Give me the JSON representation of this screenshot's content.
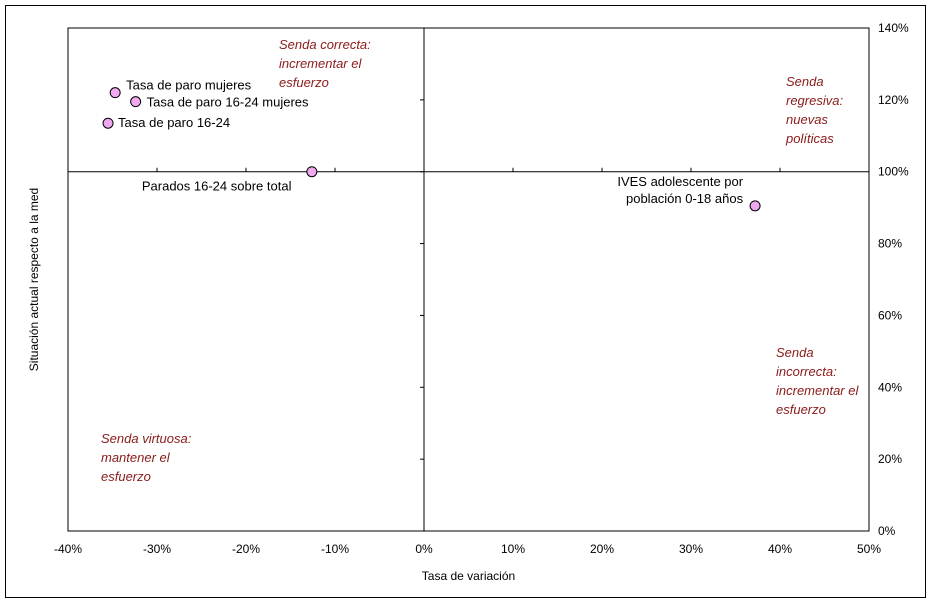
{
  "chart_data": {
    "type": "scatter",
    "xlabel": "Tasa de variación",
    "ylabel": "Situación actual respecto a la med",
    "xlim": [
      -0.4,
      0.5
    ],
    "ylim": [
      0,
      1.4
    ],
    "x_ticks": [
      {
        "value": -0.4,
        "label": "-40%"
      },
      {
        "value": -0.3,
        "label": "-30%"
      },
      {
        "value": -0.2,
        "label": "-20%"
      },
      {
        "value": -0.1,
        "label": "-10%"
      },
      {
        "value": 0.0,
        "label": "0%"
      },
      {
        "value": 0.1,
        "label": "10%"
      },
      {
        "value": 0.2,
        "label": "20%"
      },
      {
        "value": 0.3,
        "label": "30%"
      },
      {
        "value": 0.4,
        "label": "40%"
      },
      {
        "value": 0.5,
        "label": "50%"
      }
    ],
    "y_ticks": [
      {
        "value": 0.0,
        "label": "0%"
      },
      {
        "value": 0.2,
        "label": "20%"
      },
      {
        "value": 0.4,
        "label": "40%"
      },
      {
        "value": 0.6,
        "label": "60%"
      },
      {
        "value": 0.8,
        "label": "80%"
      },
      {
        "value": 1.0,
        "label": "100%"
      },
      {
        "value": 1.2,
        "label": "120%"
      },
      {
        "value": 1.4,
        "label": "140%"
      }
    ],
    "y_axis_side": "right",
    "grid": false,
    "marker_color": "#F0A8F0",
    "marker_edge": "#000000",
    "points": [
      {
        "label": "Tasa de paro mujeres",
        "x": -0.347,
        "y": 1.22
      },
      {
        "label": "Tasa de paro 16-24 mujeres",
        "x": -0.324,
        "y": 1.195
      },
      {
        "label": "Tasa de paro 16-24",
        "x": -0.355,
        "y": 1.135
      },
      {
        "label": "Parados 16-24 sobre total",
        "x": -0.126,
        "y": 1.0
      },
      {
        "label": "IVES adolescente por población 0-18 años",
        "label_lines": [
          "IVES adolescente por",
          "población 0-18 años"
        ],
        "x": 0.372,
        "y": 0.905
      }
    ],
    "annotations": [
      {
        "id": "correcta",
        "lines": [
          "Senda correcta:",
          "incrementar el",
          "esfuerzo"
        ]
      },
      {
        "id": "regresiva",
        "lines": [
          "Senda",
          "regresiva:",
          "nuevas",
          "políticas"
        ]
      },
      {
        "id": "incorrecta",
        "lines": [
          "Senda",
          "incorrecta:",
          "incrementar el",
          "esfuerzo"
        ]
      },
      {
        "id": "virtuosa",
        "lines": [
          "Senda virtuosa:",
          "mantener el",
          "esfuerzo"
        ]
      }
    ],
    "annotation_color": "#8B1A1A"
  }
}
